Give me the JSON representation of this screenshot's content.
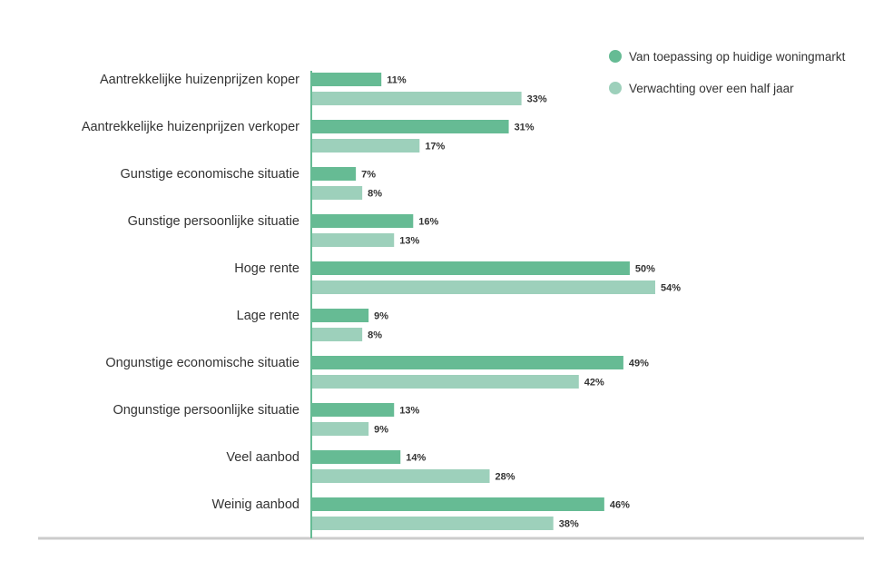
{
  "chart_data": {
    "type": "bar",
    "orientation": "horizontal",
    "categories": [
      "Aantrekkelijke huizenprijzen koper",
      "Aantrekkelijke huizenprijzen verkoper",
      "Gunstige economische situatie",
      "Gunstige persoonlijke situatie",
      "Hoge rente",
      "Lage rente",
      "Ongunstige economische situatie",
      "Ongunstige persoonlijke situatie",
      "Veel aanbod",
      "Weinig aanbod"
    ],
    "series": [
      {
        "name": "Van toepassing op huidige woningmarkt",
        "color": "#66bb94",
        "values": [
          11,
          31,
          7,
          16,
          50,
          9,
          49,
          13,
          14,
          46
        ],
        "labels": [
          "11%",
          "31%",
          "7%",
          "16%",
          "50%",
          "9%",
          "49%",
          "13%",
          "14%",
          "46%"
        ]
      },
      {
        "name": "Verwachting over een half jaar",
        "color": "#9dd0bb",
        "values": [
          33,
          17,
          8,
          13,
          54,
          8,
          42,
          9,
          28,
          38
        ],
        "labels": [
          "33%",
          "17%",
          "8%",
          "13%",
          "54%",
          "8%",
          "42%",
          "9%",
          "28%",
          "38%"
        ]
      }
    ],
    "xlim": [
      0,
      54
    ],
    "legend_position": "top-right",
    "axis_color": "#66bb94",
    "baseline_color": "#cccccc",
    "grid": false
  }
}
